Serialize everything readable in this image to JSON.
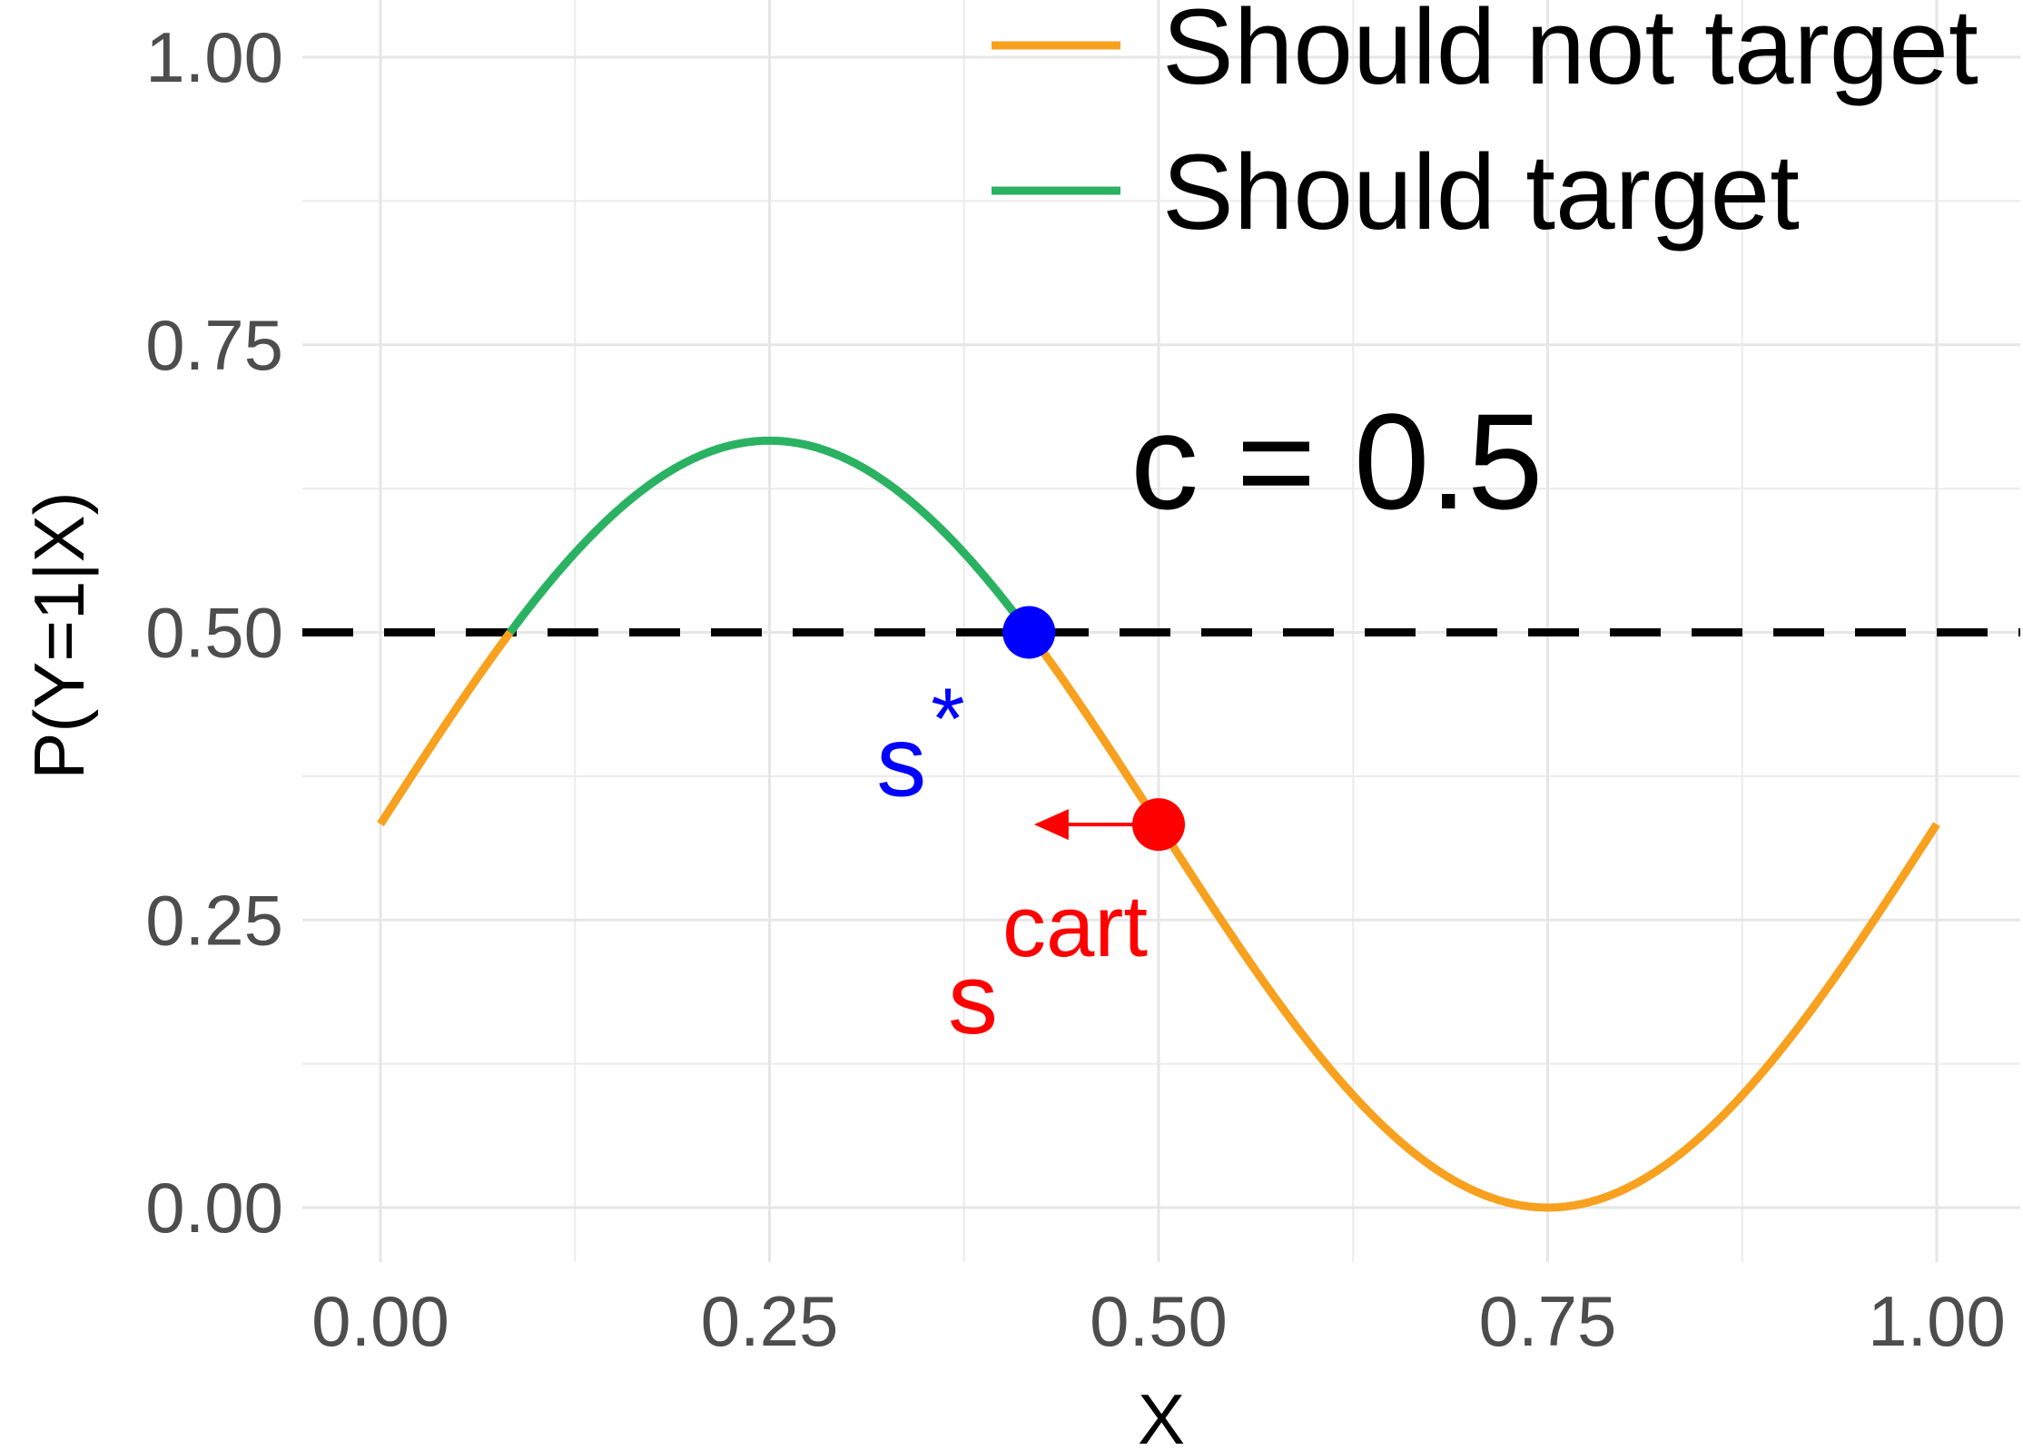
{
  "chart_data": {
    "type": "line",
    "title": "",
    "xlabel": "X",
    "ylabel": "P(Y=1|X)",
    "xlim": [
      -0.05,
      1.05
    ],
    "ylim": [
      -0.07,
      1.04
    ],
    "x_ticks": [
      0,
      0.25,
      0.5,
      0.75,
      1
    ],
    "x_tick_labels": [
      "0.00",
      "0.25",
      "0.50",
      "0.75",
      "1.00"
    ],
    "y_ticks": [
      0,
      0.25,
      0.5,
      0.75,
      1
    ],
    "y_tick_labels": [
      "0.00",
      "0.25",
      "0.50",
      "0.75",
      "1.00"
    ],
    "grid": true,
    "legend_position": "top-right",
    "curve": {
      "description": "P(Y=1|X) = 1/3 + (1/3) * sin(2*pi*x), x in [0, 1]",
      "x": [
        0,
        0.05,
        0.1,
        0.15,
        0.2,
        0.25,
        0.3,
        0.35,
        0.4,
        0.45,
        0.5,
        0.55,
        0.6,
        0.65,
        0.7,
        0.75,
        0.8,
        0.85,
        0.9,
        0.95,
        1
      ],
      "y": [
        0.333,
        0.436,
        0.529,
        0.604,
        0.65,
        0.667,
        0.65,
        0.604,
        0.529,
        0.436,
        0.333,
        0.23,
        0.137,
        0.063,
        0.016,
        0.0,
        0.016,
        0.063,
        0.137,
        0.23,
        0.333
      ]
    },
    "series": [
      {
        "name": "Should not target",
        "color": "#F8A11F",
        "rule": "y < 0.5"
      },
      {
        "name": "Should target",
        "color": "#2AB262",
        "rule": "y >= 0.5"
      }
    ],
    "threshold": {
      "label": "c = 0.5",
      "value": 0.5,
      "color": "#000000",
      "style": "dashed"
    },
    "points": [
      {
        "name": "s*",
        "label_base": "s",
        "label_sup": "*",
        "x": 0.4167,
        "y": 0.5,
        "color": "#0000FF"
      },
      {
        "name": "s^cart",
        "label_base": "s",
        "label_sup": "cart",
        "x": 0.5,
        "y": 0.333,
        "color": "#FF0000"
      }
    ],
    "arrow": {
      "from_x": 0.5,
      "to_x": 0.42,
      "y": 0.333,
      "color": "#FF0000"
    }
  }
}
